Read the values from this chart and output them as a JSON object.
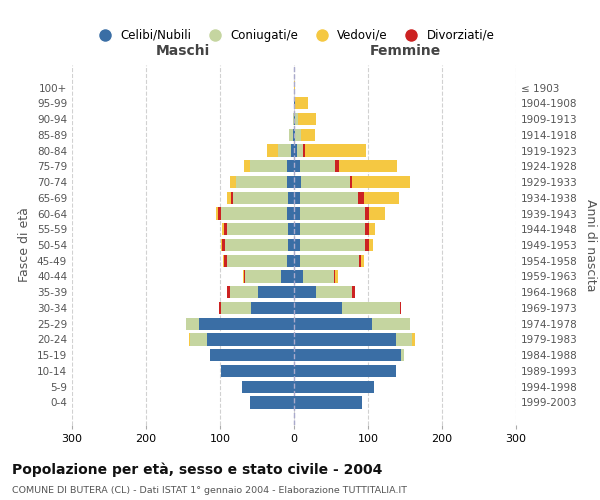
{
  "age_groups": [
    "100+",
    "95-99",
    "90-94",
    "85-89",
    "80-84",
    "75-79",
    "70-74",
    "65-69",
    "60-64",
    "55-59",
    "50-54",
    "45-49",
    "40-44",
    "35-39",
    "30-34",
    "25-29",
    "20-24",
    "15-19",
    "10-14",
    "5-9",
    "0-4"
  ],
  "birth_years": [
    "≤ 1903",
    "1904-1908",
    "1909-1913",
    "1914-1918",
    "1919-1923",
    "1924-1928",
    "1929-1933",
    "1934-1938",
    "1939-1943",
    "1944-1948",
    "1949-1953",
    "1954-1958",
    "1959-1963",
    "1964-1968",
    "1969-1973",
    "1974-1978",
    "1979-1983",
    "1984-1988",
    "1989-1993",
    "1994-1998",
    "1999-2003"
  ],
  "male_celibi": [
    0,
    0,
    0,
    2,
    4,
    10,
    10,
    8,
    10,
    8,
    8,
    10,
    18,
    48,
    58,
    128,
    118,
    113,
    98,
    70,
    60
  ],
  "male_coniugati": [
    0,
    0,
    1,
    5,
    18,
    50,
    68,
    75,
    88,
    83,
    85,
    80,
    48,
    38,
    40,
    18,
    22,
    0,
    0,
    0,
    0
  ],
  "male_vedovi": [
    0,
    0,
    0,
    0,
    14,
    8,
    8,
    5,
    2,
    2,
    2,
    1,
    2,
    0,
    0,
    0,
    2,
    0,
    0,
    0,
    0
  ],
  "male_divorziati": [
    0,
    0,
    0,
    0,
    0,
    0,
    0,
    2,
    5,
    4,
    4,
    5,
    1,
    4,
    3,
    0,
    0,
    0,
    0,
    0,
    0
  ],
  "female_nubili": [
    0,
    1,
    1,
    2,
    4,
    8,
    10,
    8,
    8,
    8,
    8,
    8,
    12,
    30,
    65,
    105,
    138,
    145,
    138,
    108,
    92
  ],
  "female_coniugate": [
    0,
    0,
    4,
    8,
    8,
    48,
    65,
    78,
    88,
    88,
    88,
    80,
    42,
    48,
    78,
    52,
    22,
    4,
    0,
    0,
    0
  ],
  "female_vedove": [
    1,
    18,
    25,
    18,
    82,
    78,
    78,
    48,
    22,
    8,
    6,
    4,
    4,
    0,
    0,
    0,
    4,
    0,
    0,
    0,
    0
  ],
  "female_divorziate": [
    0,
    0,
    0,
    0,
    3,
    5,
    4,
    8,
    5,
    5,
    5,
    3,
    1,
    5,
    2,
    0,
    0,
    0,
    0,
    0,
    0
  ],
  "color_celibi": "#3a6ea5",
  "color_coniugati": "#c5d5a0",
  "color_vedovi": "#f5c842",
  "color_divorziati": "#cc2222",
  "title": "Popolazione per età, sesso e stato civile - 2004",
  "subtitle": "COMUNE DI BUTERA (CL) - Dati ISTAT 1° gennaio 2004 - Elaborazione TUTTITALIA.IT",
  "label_maschi": "Maschi",
  "label_femmine": "Femmine",
  "ylabel_left": "Fasce di età",
  "ylabel_right": "Anni di nascita",
  "xlim": 300,
  "legend_labels": [
    "Celibi/Nubili",
    "Coniugati/e",
    "Vedovi/e",
    "Divorziati/e"
  ]
}
